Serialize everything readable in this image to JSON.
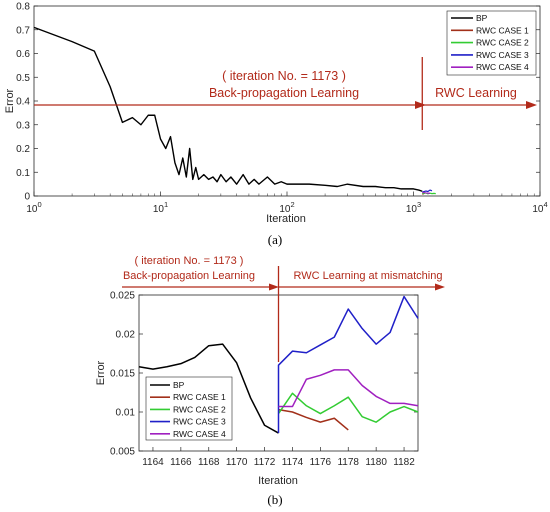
{
  "chart_data": [
    {
      "panel_label": "(a)",
      "type": "line",
      "xlabel": "Iteration",
      "ylabel": "Error",
      "xscale": "log",
      "xlim": [
        1,
        10000
      ],
      "ylim": [
        0,
        0.8
      ],
      "xticks": [
        1,
        10,
        100,
        1000,
        10000
      ],
      "xtick_labels": [
        [
          "10",
          "0"
        ],
        [
          "10",
          "1"
        ],
        [
          "10",
          "2"
        ],
        [
          "10",
          "3"
        ],
        [
          "10",
          "4"
        ]
      ],
      "yticks": [
        0,
        0.1,
        0.2,
        0.3,
        0.4,
        0.5,
        0.6,
        0.7,
        0.8
      ],
      "ytick_labels": [
        "0",
        "0.1",
        "0.2",
        "0.3",
        "0.4",
        "0.5",
        "0.6",
        "0.7",
        "0.8"
      ],
      "legend": {
        "position": "top-right",
        "entries": [
          "BP",
          "RWC CASE 1",
          "RWC CASE 2",
          "RWC CASE 3",
          "RWC CASE 4"
        ]
      },
      "series": [
        {
          "name": "BP",
          "color": "#000000",
          "x": [
            1,
            2,
            3,
            4,
            5,
            6,
            7,
            8,
            9,
            10,
            11,
            12,
            13,
            14,
            15,
            16,
            17,
            18,
            19,
            20,
            22,
            24,
            26,
            28,
            30,
            33,
            36,
            40,
            45,
            50,
            55,
            60,
            70,
            80,
            90,
            100,
            120,
            150,
            200,
            250,
            300,
            400,
            500,
            600,
            700,
            800,
            900,
            1000,
            1100,
            1173
          ],
          "y": [
            0.71,
            0.65,
            0.61,
            0.46,
            0.31,
            0.33,
            0.3,
            0.34,
            0.34,
            0.24,
            0.2,
            0.25,
            0.14,
            0.09,
            0.16,
            0.08,
            0.2,
            0.07,
            0.12,
            0.07,
            0.09,
            0.07,
            0.08,
            0.06,
            0.09,
            0.06,
            0.08,
            0.05,
            0.09,
            0.05,
            0.07,
            0.05,
            0.08,
            0.05,
            0.06,
            0.05,
            0.05,
            0.05,
            0.045,
            0.04,
            0.05,
            0.04,
            0.04,
            0.035,
            0.035,
            0.03,
            0.03,
            0.03,
            0.025,
            0.02
          ]
        },
        {
          "name": "RWC CASE 1",
          "color": "#a2301a",
          "x": [
            1173,
            1180,
            1190,
            1200
          ],
          "y": [
            0.01,
            0.009,
            0.008,
            0.007
          ]
        },
        {
          "name": "RWC CASE 2",
          "color": "#33cc33",
          "x": [
            1173,
            1200,
            1250,
            1300,
            1350,
            1400,
            1450,
            1500
          ],
          "y": [
            0.012,
            0.01,
            0.013,
            0.009,
            0.012,
            0.01,
            0.011,
            0.01
          ]
        },
        {
          "name": "RWC CASE 3",
          "color": "#2020c8",
          "x": [
            1173,
            1200,
            1250,
            1300,
            1350,
            1400
          ],
          "y": [
            0.016,
            0.018,
            0.021,
            0.019,
            0.025,
            0.022
          ]
        },
        {
          "name": "RWC CASE 4",
          "color": "#a020c0",
          "x": [
            1173,
            1200,
            1250,
            1300,
            1350
          ],
          "y": [
            0.014,
            0.015,
            0.013,
            0.012,
            0.011
          ]
        }
      ],
      "annotations": {
        "iteration_note": "( iteration No. = 1173 )",
        "left_phase": "Back-propagation Learning",
        "right_phase": "RWC Learning",
        "split_x": 1173
      }
    },
    {
      "panel_label": "(b)",
      "type": "line",
      "xlabel": "Iteration",
      "ylabel": "Error",
      "xlim": [
        1163,
        1183
      ],
      "ylim": [
        0.005,
        0.025
      ],
      "xticks": [
        1164,
        1166,
        1168,
        1170,
        1172,
        1174,
        1176,
        1178,
        1180,
        1182
      ],
      "xtick_labels": [
        "1164",
        "1166",
        "1168",
        "1170",
        "1172",
        "1174",
        "1176",
        "1178",
        "1180",
        "1182"
      ],
      "yticks": [
        0.005,
        0.01,
        0.015,
        0.02,
        0.025
      ],
      "ytick_labels": [
        "0.005",
        "0.01",
        "0.015",
        "0.02",
        "0.025"
      ],
      "legend": {
        "position": "bottom-left",
        "entries": [
          "BP",
          "RWC CASE 1",
          "RWC CASE 2",
          "RWC CASE 3",
          "RWC CASE 4"
        ]
      },
      "series": [
        {
          "name": "BP",
          "color": "#000000",
          "x": [
            1163,
            1164,
            1165,
            1166,
            1167,
            1168,
            1169,
            1170,
            1171,
            1172,
            1173
          ],
          "y": [
            0.0158,
            0.0155,
            0.0158,
            0.0162,
            0.017,
            0.0185,
            0.0187,
            0.0163,
            0.0118,
            0.0083,
            0.0073
          ]
        },
        {
          "name": "RWC CASE 1",
          "color": "#a2301a",
          "x": [
            1173,
            1174,
            1175,
            1176,
            1177,
            1178
          ],
          "y": [
            0.0103,
            0.01,
            0.0093,
            0.0087,
            0.0092,
            0.0077
          ]
        },
        {
          "name": "RWC CASE 2",
          "color": "#33cc33",
          "x": [
            1173,
            1174,
            1175,
            1176,
            1177,
            1178,
            1179,
            1180,
            1181,
            1182,
            1183
          ],
          "y": [
            0.0098,
            0.0124,
            0.0108,
            0.0098,
            0.0108,
            0.0119,
            0.0094,
            0.0087,
            0.01,
            0.0107,
            0.01
          ]
        },
        {
          "name": "RWC CASE 3",
          "color": "#2020c8",
          "x": [
            1173,
            1173,
            1174,
            1175,
            1176,
            1177,
            1178,
            1179,
            1180,
            1181,
            1182,
            1183
          ],
          "y": [
            0.0073,
            0.016,
            0.0178,
            0.0176,
            0.0186,
            0.0196,
            0.0232,
            0.0207,
            0.0187,
            0.0202,
            0.0248,
            0.022
          ]
        },
        {
          "name": "RWC CASE 4",
          "color": "#a020c0",
          "x": [
            1173,
            1174,
            1175,
            1176,
            1177,
            1178,
            1179,
            1180,
            1181,
            1182,
            1183
          ],
          "y": [
            0.0107,
            0.0107,
            0.0142,
            0.0147,
            0.0154,
            0.0154,
            0.0134,
            0.012,
            0.0111,
            0.0111,
            0.0108
          ]
        }
      ],
      "annotations": {
        "iteration_note": "( iteration No. = 1173 )",
        "left_phase": "Back-propagation Learning",
        "right_phase": "RWC Learning at mismatching",
        "split_x": 1173
      }
    }
  ]
}
